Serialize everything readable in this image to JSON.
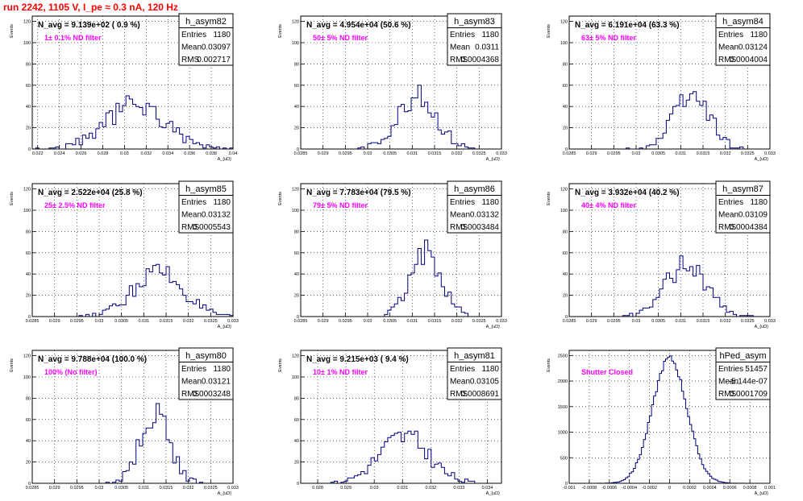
{
  "title": "run 2242,  1105 V, I_pe ≈ 0.3 nA, 120 Hz",
  "colors": {
    "histogram": "#000080",
    "annotation": "#ff00ff",
    "title": "#ff0000",
    "grid": "#000000"
  },
  "chart_data": [
    {
      "type": "bar",
      "name": "h_asym82",
      "entries": "1180",
      "mean": "0.03097",
      "rms": "0.002717",
      "navg": "N_avg = 9.139e+02 ( 0.9 %)",
      "note": "1± 0.1% ND filter",
      "ylabel": "Events",
      "xlabel": "A_{uD}",
      "xlim": [
        0.0215,
        0.04
      ],
      "ylim": [
        0,
        125
      ],
      "xticks": [
        0.022,
        0.024,
        0.026,
        0.028,
        0.03,
        0.032,
        0.034,
        0.036,
        0.038,
        0.04
      ],
      "xticklabels": [
        "0.022",
        "0.024",
        "0.026",
        "0.028",
        "0.03",
        "0.032",
        "0.034",
        "0.036",
        "0.038",
        "0.04"
      ],
      "yticks": [
        0,
        20,
        40,
        60,
        80,
        100,
        120
      ],
      "mu": 0.031,
      "sigma": 0.0027,
      "peak": 42,
      "nbins": 60,
      "seed": 82
    },
    {
      "type": "bar",
      "name": "h_asym83",
      "entries": "1180",
      "mean": "0.0311",
      "rms": "0.0004368",
      "navg": "N_avg = 4.954e+04 (50.6 %)",
      "note": "50± 5% ND filter",
      "ylabel": "Events",
      "xlabel": "A_{uD}",
      "xlim": [
        0.0285,
        0.033
      ],
      "ylim": [
        0,
        125
      ],
      "xticks": [
        0.0285,
        0.029,
        0.0295,
        0.03,
        0.0305,
        0.031,
        0.0315,
        0.032,
        0.0325,
        0.033
      ],
      "xticklabels": [
        "0.0285",
        "0.029",
        "0.0295",
        "0.03",
        "0.0305",
        "0.031",
        "0.0315",
        "0.032",
        "0.0325",
        "0.033"
      ],
      "yticks": [
        0,
        20,
        40,
        60,
        80,
        100,
        120
      ],
      "mu": 0.0311,
      "sigma": 0.00044,
      "peak": 50,
      "nbins": 60,
      "seed": 83
    },
    {
      "type": "bar",
      "name": "h_asym84",
      "entries": "1180",
      "mean": "0.03124",
      "rms": "0.0004004",
      "navg": "N_avg = 6.191e+04 (63.3 %)",
      "note": "63± 5% ND filter",
      "ylabel": "Events",
      "xlabel": "A_{uD}",
      "xlim": [
        0.0285,
        0.033
      ],
      "ylim": [
        0,
        125
      ],
      "xticks": [
        0.0285,
        0.029,
        0.0295,
        0.03,
        0.0305,
        0.031,
        0.0315,
        0.032,
        0.0325,
        0.033
      ],
      "xticklabels": [
        "0.0285",
        "0.029",
        "0.0295",
        "0.03",
        "0.0305",
        "0.031",
        "0.0315",
        "0.032",
        "0.0325",
        "0.033"
      ],
      "yticks": [
        0,
        20,
        40,
        60,
        80,
        100,
        120
      ],
      "mu": 0.03124,
      "sigma": 0.0004,
      "peak": 52,
      "nbins": 60,
      "seed": 84
    },
    {
      "type": "bar",
      "name": "h_asym85",
      "entries": "1180",
      "mean": "0.03132",
      "rms": "0.0005543",
      "navg": "N_avg = 2.522e+04 (25.8 %)",
      "note": "25± 2.5% ND filter",
      "ylabel": "Events",
      "xlabel": "A_{uD}",
      "xlim": [
        0.0285,
        0.033
      ],
      "ylim": [
        0,
        125
      ],
      "xticks": [
        0.0285,
        0.029,
        0.0295,
        0.03,
        0.0305,
        0.031,
        0.0315,
        0.032,
        0.0325,
        0.033
      ],
      "xticklabels": [
        "0.0285",
        "0.029",
        "0.0295",
        "0.03",
        "0.0305",
        "0.031",
        "0.0315",
        "0.032",
        "0.0325",
        "0.033"
      ],
      "yticks": [
        0,
        20,
        40,
        60,
        80,
        100,
        120
      ],
      "mu": 0.03132,
      "sigma": 0.00055,
      "peak": 42,
      "nbins": 60,
      "seed": 85
    },
    {
      "type": "bar",
      "name": "h_asym86",
      "entries": "1180",
      "mean": "0.03132",
      "rms": "0.0003484",
      "navg": "N_avg = 7.783e+04 (79.5 %)",
      "note": "79± 5% ND filter",
      "ylabel": "Events",
      "xlabel": "A_{uD}",
      "xlim": [
        0.0285,
        0.033
      ],
      "ylim": [
        0,
        125
      ],
      "xticks": [
        0.0285,
        0.029,
        0.0295,
        0.03,
        0.0305,
        0.031,
        0.0315,
        0.032,
        0.0325,
        0.033
      ],
      "xticklabels": [
        "0.0285",
        "0.029",
        "0.0295",
        "0.03",
        "0.0305",
        "0.031",
        "0.0315",
        "0.032",
        "0.0325",
        "0.033"
      ],
      "yticks": [
        0,
        20,
        40,
        60,
        80,
        100,
        120
      ],
      "mu": 0.03132,
      "sigma": 0.00035,
      "peak": 60,
      "nbins": 60,
      "seed": 86
    },
    {
      "type": "bar",
      "name": "h_asym87",
      "entries": "1180",
      "mean": "0.03109",
      "rms": "0.0004384",
      "navg": "N_avg = 3.932e+04 (40.2 %)",
      "note": "40± 4% ND filter",
      "ylabel": "Events",
      "xlabel": "A_{uD}",
      "xlim": [
        0.0285,
        0.033
      ],
      "ylim": [
        0,
        125
      ],
      "xticks": [
        0.0285,
        0.029,
        0.0295,
        0.03,
        0.0305,
        0.031,
        0.0315,
        0.032,
        0.0325,
        0.033
      ],
      "xticklabels": [
        "0.0285",
        "0.029",
        "0.0295",
        "0.03",
        "0.0305",
        "0.031",
        "0.0315",
        "0.032",
        "0.0325",
        "0.033"
      ],
      "yticks": [
        0,
        20,
        40,
        60,
        80,
        100,
        120
      ],
      "mu": 0.03112,
      "sigma": 0.00044,
      "peak": 50,
      "nbins": 60,
      "seed": 87
    },
    {
      "type": "bar",
      "name": "h_asym80",
      "entries": "1180",
      "mean": "0.03121",
      "rms": "0.0003248",
      "navg": "N_avg = 9.788e+04 (100.0 %)",
      "note": "100% (No filter)",
      "ylabel": "Events",
      "xlabel": "A_{uD}",
      "xlim": [
        0.0285,
        0.033
      ],
      "ylim": [
        0,
        125
      ],
      "xticks": [
        0.0285,
        0.029,
        0.0295,
        0.03,
        0.0305,
        0.031,
        0.0315,
        0.032,
        0.0325,
        0.033
      ],
      "xticklabels": [
        "0.0285",
        "0.029",
        "0.0295",
        "0.03",
        "0.0305",
        "0.031",
        "0.0315",
        "0.032",
        "0.0325",
        "0.033"
      ],
      "yticks": [
        0,
        20,
        40,
        60,
        80,
        100,
        120
      ],
      "mu": 0.03125,
      "sigma": 0.00033,
      "peak": 65,
      "nbins": 60,
      "seed": 80
    },
    {
      "type": "bar",
      "name": "h_asym81",
      "entries": "1180",
      "mean": "0.03105",
      "rms": "0.0008691",
      "navg": "N_avg = 9.215e+03 ( 9.4 %)",
      "note": "10± 1% ND filter",
      "ylabel": "Events",
      "xlabel": "A_{uD}",
      "xlim": [
        0.0274,
        0.0345
      ],
      "ylim": [
        0,
        125
      ],
      "xticks": [
        0.028,
        0.029,
        0.03,
        0.031,
        0.032,
        0.033,
        0.034
      ],
      "xticklabels": [
        "0.028",
        "0.029",
        "0.03",
        "0.031",
        "0.032",
        "0.033",
        "0.034"
      ],
      "yticks": [
        0,
        20,
        40,
        60,
        80,
        100,
        120
      ],
      "mu": 0.03105,
      "sigma": 0.00087,
      "peak": 44,
      "nbins": 60,
      "seed": 81
    },
    {
      "type": "bar",
      "name": "hPed_asym",
      "entries": "51457",
      "mean": "-5.144e-07",
      "rms": "0.0001709",
      "navg": "",
      "note": "Shutter Closed",
      "ylabel": "Events",
      "xlabel": "A_{uD}",
      "xlim": [
        -0.001,
        0.001
      ],
      "ylim": [
        0,
        2600
      ],
      "xticks": [
        -0.001,
        -0.0008,
        -0.0006,
        -0.0004,
        -0.0002,
        0,
        0.0002,
        0.0004,
        0.0006,
        0.0008,
        0.001
      ],
      "xticklabels": [
        "-0.001",
        "-0.0008",
        "-0.0006",
        "-0.0004",
        "-0.0002",
        "0",
        "0.0002",
        "0.0004",
        "0.0006",
        "0.0008",
        "0.001"
      ],
      "yticks": [
        0,
        500,
        1000,
        1500,
        2000,
        2500
      ],
      "mu": 0.0,
      "sigma": 0.000171,
      "peak": 2450,
      "nbins": 100,
      "seed": 90
    }
  ]
}
